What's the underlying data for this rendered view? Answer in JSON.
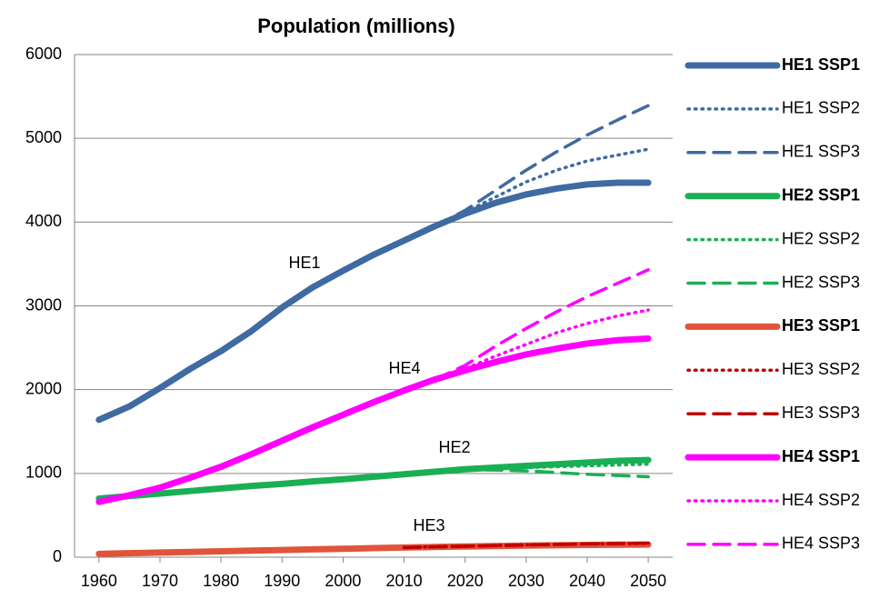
{
  "chart_data": {
    "type": "line",
    "title": "Population (millions)",
    "x": [
      1960,
      1965,
      1970,
      1975,
      1980,
      1985,
      1990,
      1995,
      2000,
      2005,
      2010,
      2015,
      2020,
      2025,
      2030,
      2035,
      2040,
      2045,
      2050
    ],
    "xlim": [
      1956,
      2054
    ],
    "xticks": [
      1960,
      1970,
      1980,
      1990,
      2000,
      2010,
      2020,
      2030,
      2040,
      2050
    ],
    "ylim": [
      0,
      6000
    ],
    "yticks": [
      0,
      1000,
      2000,
      3000,
      4000,
      5000,
      6000
    ],
    "grid": true,
    "legend": "right",
    "annotations": [
      "HE1",
      "HE4",
      "HE2",
      "HE3"
    ],
    "series": [
      {
        "name": "HE1 SSP1",
        "color": "#3f6aa2",
        "dash": "solid",
        "values": [
          1640,
          1800,
          2020,
          2250,
          2460,
          2700,
          2980,
          3220,
          3420,
          3610,
          3780,
          3950,
          4100,
          4230,
          4330,
          4400,
          4450,
          4470,
          4470
        ]
      },
      {
        "name": "HE1 SSP2",
        "color": "#3f6aa2",
        "dash": "dotted",
        "values": [
          null,
          null,
          null,
          null,
          null,
          null,
          null,
          null,
          null,
          null,
          null,
          3950,
          4120,
          4300,
          4480,
          4620,
          4730,
          4800,
          4870
        ]
      },
      {
        "name": "HE1 SSP3",
        "color": "#3f6aa2",
        "dash": "dashed",
        "values": [
          null,
          null,
          null,
          null,
          null,
          null,
          null,
          null,
          null,
          null,
          null,
          3950,
          4140,
          4380,
          4620,
          4840,
          5040,
          5220,
          5390
        ]
      },
      {
        "name": "HE2 SSP1",
        "color": "#1aaf54",
        "dash": "solid",
        "values": [
          700,
          730,
          760,
          790,
          820,
          850,
          875,
          905,
          930,
          960,
          990,
          1020,
          1050,
          1070,
          1090,
          1110,
          1130,
          1150,
          1160
        ]
      },
      {
        "name": "HE2 SSP2",
        "color": "#1aaf54",
        "dash": "dotted",
        "values": [
          null,
          null,
          null,
          null,
          null,
          null,
          null,
          null,
          null,
          null,
          null,
          1020,
          1050,
          1060,
          1070,
          1080,
          1090,
          1100,
          1110
        ]
      },
      {
        "name": "HE2 SSP3",
        "color": "#1aaf54",
        "dash": "dashed",
        "values": [
          null,
          null,
          null,
          null,
          null,
          null,
          null,
          null,
          null,
          null,
          null,
          1020,
          1045,
          1040,
          1030,
          1010,
          990,
          975,
          960
        ]
      },
      {
        "name": "HE3 SSP1",
        "color": "#e0543a",
        "dash": "solid",
        "values": [
          40,
          48,
          55,
          63,
          70,
          78,
          85,
          93,
          100,
          108,
          115,
          122,
          128,
          133,
          138,
          142,
          146,
          149,
          150
        ]
      },
      {
        "name": "HE3 SSP2",
        "color": "#c00000",
        "dash": "dotted",
        "values": [
          null,
          null,
          null,
          null,
          null,
          null,
          null,
          null,
          null,
          null,
          115,
          125,
          132,
          140,
          147,
          153,
          158,
          162,
          165
        ]
      },
      {
        "name": "HE3 SSP3",
        "color": "#c00000",
        "dash": "dashed",
        "values": [
          null,
          null,
          null,
          null,
          null,
          null,
          null,
          null,
          null,
          null,
          115,
          123,
          130,
          138,
          145,
          152,
          158,
          163,
          168
        ]
      },
      {
        "name": "HE4 SSP1",
        "color": "#ff00ff",
        "dash": "solid",
        "values": [
          660,
          740,
          830,
          950,
          1080,
          1230,
          1390,
          1550,
          1700,
          1850,
          1990,
          2120,
          2230,
          2330,
          2420,
          2490,
          2550,
          2590,
          2610
        ]
      },
      {
        "name": "HE4 SSP2",
        "color": "#ff00ff",
        "dash": "dotted",
        "values": [
          null,
          null,
          null,
          null,
          null,
          null,
          null,
          null,
          null,
          null,
          null,
          2120,
          2250,
          2400,
          2540,
          2680,
          2790,
          2880,
          2950
        ]
      },
      {
        "name": "HE4 SSP3",
        "color": "#ff00ff",
        "dash": "dashed",
        "values": [
          null,
          null,
          null,
          null,
          null,
          null,
          null,
          null,
          null,
          null,
          null,
          2120,
          2290,
          2520,
          2730,
          2930,
          3110,
          3270,
          3430
        ]
      }
    ]
  }
}
